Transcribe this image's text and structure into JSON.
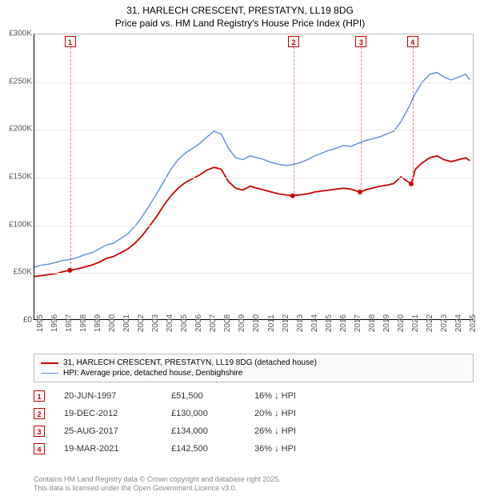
{
  "title_line1": "31, HARLECH CRESCENT, PRESTATYN, LL19 8DG",
  "title_line2": "Price paid vs. HM Land Registry's House Price Index (HPI)",
  "chart": {
    "type": "line",
    "x_domain_years": [
      1995,
      2025.5
    ],
    "y_domain": [
      0,
      300000
    ],
    "y_ticks": [
      {
        "v": 0,
        "label": "£0"
      },
      {
        "v": 50000,
        "label": "£50K"
      },
      {
        "v": 100000,
        "label": "£100K"
      },
      {
        "v": 150000,
        "label": "£150K"
      },
      {
        "v": 200000,
        "label": "£200K"
      },
      {
        "v": 250000,
        "label": "£250K"
      },
      {
        "v": 300000,
        "label": "£300K"
      }
    ],
    "x_ticks": [
      "1995",
      "1996",
      "1997",
      "1998",
      "1999",
      "2000",
      "2001",
      "2002",
      "2003",
      "2004",
      "2005",
      "2006",
      "2007",
      "2008",
      "2009",
      "2010",
      "2011",
      "2012",
      "2013",
      "2014",
      "2015",
      "2016",
      "2017",
      "2018",
      "2019",
      "2020",
      "2021",
      "2022",
      "2023",
      "2024",
      "2025"
    ],
    "grid_color": "#e8e8e8",
    "background_color": "#ffffff",
    "series": [
      {
        "name": "hpi",
        "label": "HPI: Average price, detached house, Denbighshire",
        "color": "#5a8fd6",
        "width": 1.4,
        "points": [
          [
            1995,
            55000
          ],
          [
            1995.5,
            57000
          ],
          [
            1996,
            58000
          ],
          [
            1996.5,
            60000
          ],
          [
            1997,
            62000
          ],
          [
            1997.5,
            63000
          ],
          [
            1998,
            65000
          ],
          [
            1998.5,
            68000
          ],
          [
            1999,
            70000
          ],
          [
            1999.5,
            74000
          ],
          [
            2000,
            78000
          ],
          [
            2000.5,
            80000
          ],
          [
            2001,
            85000
          ],
          [
            2001.5,
            90000
          ],
          [
            2002,
            98000
          ],
          [
            2002.5,
            108000
          ],
          [
            2003,
            120000
          ],
          [
            2003.5,
            132000
          ],
          [
            2004,
            145000
          ],
          [
            2004.5,
            158000
          ],
          [
            2005,
            168000
          ],
          [
            2005.5,
            175000
          ],
          [
            2006,
            180000
          ],
          [
            2006.5,
            185000
          ],
          [
            2007,
            192000
          ],
          [
            2007.5,
            198000
          ],
          [
            2008,
            195000
          ],
          [
            2008.5,
            180000
          ],
          [
            2009,
            170000
          ],
          [
            2009.5,
            168000
          ],
          [
            2010,
            172000
          ],
          [
            2010.5,
            170000
          ],
          [
            2011,
            168000
          ],
          [
            2011.5,
            165000
          ],
          [
            2012,
            163000
          ],
          [
            2012.5,
            162000
          ],
          [
            2013,
            163000
          ],
          [
            2013.5,
            165000
          ],
          [
            2014,
            168000
          ],
          [
            2014.5,
            172000
          ],
          [
            2015,
            175000
          ],
          [
            2015.5,
            178000
          ],
          [
            2016,
            180000
          ],
          [
            2016.5,
            183000
          ],
          [
            2017,
            182000
          ],
          [
            2017.5,
            185000
          ],
          [
            2018,
            188000
          ],
          [
            2018.5,
            190000
          ],
          [
            2019,
            192000
          ],
          [
            2019.5,
            195000
          ],
          [
            2020,
            198000
          ],
          [
            2020.5,
            208000
          ],
          [
            2021,
            222000
          ],
          [
            2021.5,
            238000
          ],
          [
            2022,
            250000
          ],
          [
            2022.5,
            258000
          ],
          [
            2023,
            260000
          ],
          [
            2023.5,
            255000
          ],
          [
            2024,
            252000
          ],
          [
            2024.5,
            255000
          ],
          [
            2025,
            258000
          ],
          [
            2025.3,
            252000
          ]
        ]
      },
      {
        "name": "property",
        "label": "31, HARLECH CRESCENT, PRESTATYN, LL19 8DG (detached house)",
        "color": "#cc0000",
        "width": 1.8,
        "points": [
          [
            1995,
            45000
          ],
          [
            1995.5,
            46000
          ],
          [
            1996,
            47000
          ],
          [
            1996.5,
            48000
          ],
          [
            1997,
            50000
          ],
          [
            1997.47,
            51500
          ],
          [
            1998,
            53000
          ],
          [
            1998.5,
            55000
          ],
          [
            1999,
            57000
          ],
          [
            1999.5,
            60000
          ],
          [
            2000,
            64000
          ],
          [
            2000.5,
            66000
          ],
          [
            2001,
            70000
          ],
          [
            2001.5,
            74000
          ],
          [
            2002,
            80000
          ],
          [
            2002.5,
            88000
          ],
          [
            2003,
            98000
          ],
          [
            2003.5,
            108000
          ],
          [
            2004,
            120000
          ],
          [
            2004.5,
            130000
          ],
          [
            2005,
            138000
          ],
          [
            2005.5,
            144000
          ],
          [
            2006,
            148000
          ],
          [
            2006.5,
            152000
          ],
          [
            2007,
            157000
          ],
          [
            2007.5,
            160000
          ],
          [
            2008,
            158000
          ],
          [
            2008.5,
            145000
          ],
          [
            2009,
            138000
          ],
          [
            2009.5,
            136000
          ],
          [
            2010,
            140000
          ],
          [
            2010.5,
            138000
          ],
          [
            2011,
            136000
          ],
          [
            2011.5,
            134000
          ],
          [
            2012,
            132000
          ],
          [
            2012.97,
            130000
          ],
          [
            2013,
            130500
          ],
          [
            2013.5,
            131000
          ],
          [
            2014,
            132000
          ],
          [
            2014.5,
            134000
          ],
          [
            2015,
            135000
          ],
          [
            2015.5,
            136000
          ],
          [
            2016,
            137000
          ],
          [
            2016.5,
            138000
          ],
          [
            2017,
            137000
          ],
          [
            2017.65,
            134000
          ],
          [
            2018,
            136000
          ],
          [
            2018.5,
            138000
          ],
          [
            2019,
            140000
          ],
          [
            2019.5,
            141000
          ],
          [
            2020,
            143000
          ],
          [
            2020.5,
            150000
          ],
          [
            2021.21,
            142500
          ],
          [
            2021.5,
            158000
          ],
          [
            2022,
            165000
          ],
          [
            2022.5,
            170000
          ],
          [
            2023,
            172000
          ],
          [
            2023.5,
            168000
          ],
          [
            2024,
            166000
          ],
          [
            2024.5,
            168000
          ],
          [
            2025,
            170000
          ],
          [
            2025.3,
            167000
          ]
        ]
      }
    ],
    "sale_markers": [
      {
        "n": "1",
        "year": 1997.47,
        "price": 51500
      },
      {
        "n": "2",
        "year": 2012.97,
        "price": 130000
      },
      {
        "n": "3",
        "year": 2017.65,
        "price": 134000
      },
      {
        "n": "4",
        "year": 2021.21,
        "price": 142500
      }
    ]
  },
  "legend": {
    "items": [
      {
        "color": "#cc0000",
        "width": 2,
        "label": "31, HARLECH CRESCENT, PRESTATYN, LL19 8DG (detached house)"
      },
      {
        "color": "#5a8fd6",
        "width": 1.4,
        "label": "HPI: Average price, detached house, Denbighshire"
      }
    ]
  },
  "sales_table": [
    {
      "n": "1",
      "date": "20-JUN-1997",
      "price": "£51,500",
      "pct": "16% ↓ HPI"
    },
    {
      "n": "2",
      "date": "19-DEC-2012",
      "price": "£130,000",
      "pct": "20% ↓ HPI"
    },
    {
      "n": "3",
      "date": "25-AUG-2017",
      "price": "£134,000",
      "pct": "26% ↓ HPI"
    },
    {
      "n": "4",
      "date": "19-MAR-2021",
      "price": "£142,500",
      "pct": "36% ↓ HPI"
    }
  ],
  "footer_line1": "Contains HM Land Registry data © Crown copyright and database right 2025.",
  "footer_line2": "This data is licensed under the Open Government Licence v3.0."
}
